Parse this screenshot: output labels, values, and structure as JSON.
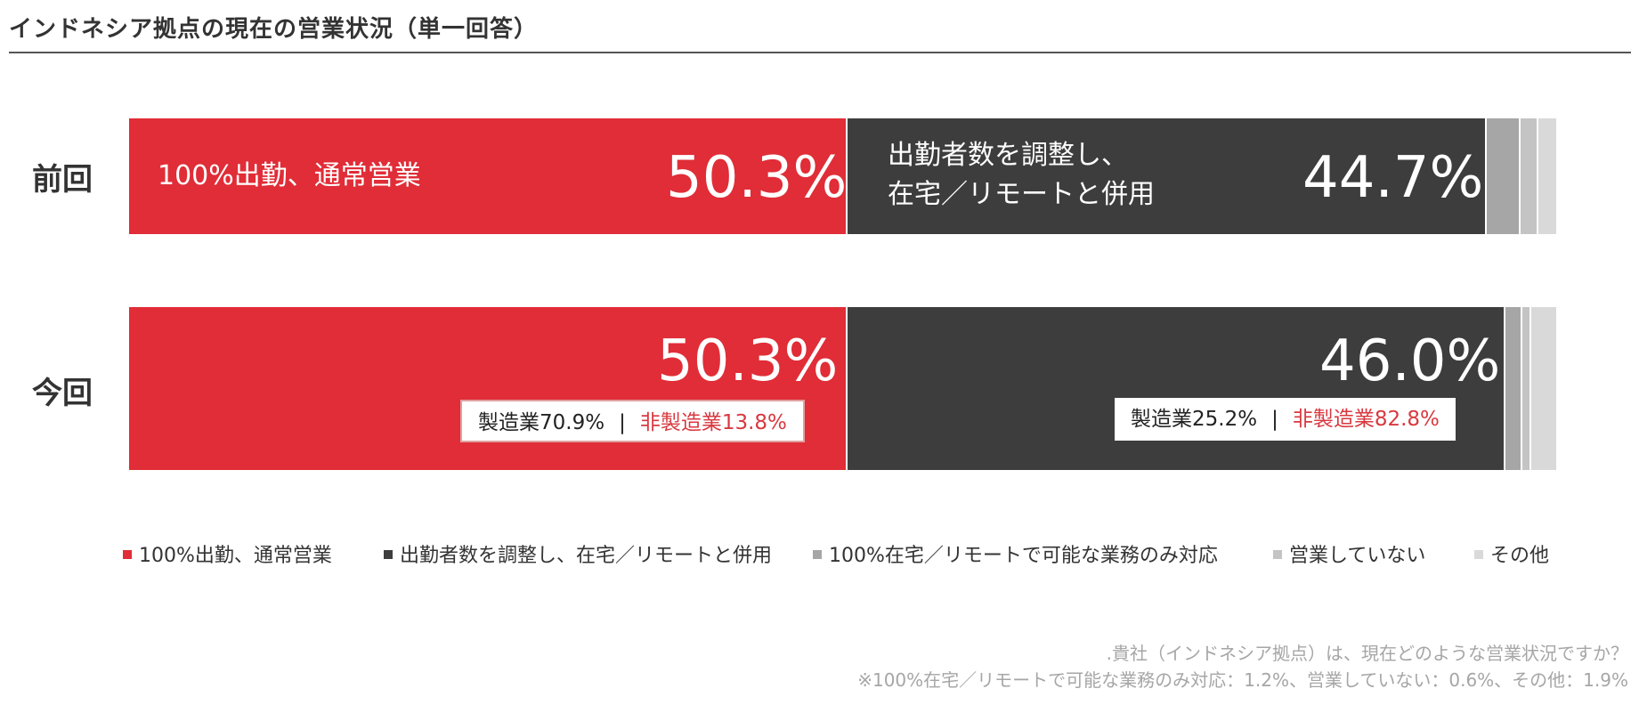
{
  "title": "インドネシア拠点の現在の営業状況（単一回答）",
  "colors": {
    "red": "#e02d37",
    "dark": "#3d3d3d",
    "gray1": "#a6a6a6",
    "gray2": "#c4c4c4",
    "gray3": "#d9d9d9",
    "non_manufacturing_text": "#d9383f"
  },
  "chart_data": {
    "type": "bar",
    "orientation": "horizontal",
    "stacked": true,
    "categories": [
      "前回",
      "今回"
    ],
    "series": [
      {
        "name": "100%出勤、通常営業",
        "values": [
          50.3,
          50.3
        ],
        "color": "#e02d37"
      },
      {
        "name": "出勤者数を調整し、在宅／リモートと併用",
        "values": [
          44.7,
          46.0
        ],
        "color": "#3d3d3d"
      },
      {
        "name": "100%在宅／リモートで可能な業務のみ対応",
        "values": [
          2.4,
          1.2
        ],
        "color": "#a6a6a6"
      },
      {
        "name": "営業していない",
        "values": [
          1.2,
          0.6
        ],
        "color": "#c4c4c4"
      },
      {
        "name": "その他",
        "values": [
          1.4,
          1.9
        ],
        "color": "#d9d9d9"
      }
    ],
    "xlim": [
      0,
      100
    ]
  },
  "rows": [
    {
      "label": "前回",
      "red_label": "100%出勤、通常営業",
      "red_value": "50.3%",
      "dark_label_line1": "出勤者数を調整し、",
      "dark_label_line2": "在宅／リモートと併用",
      "dark_value": "44.7%"
    },
    {
      "label": "今回",
      "red_value": "50.3%",
      "red_breakdown": {
        "manufacturing": "製造業70.9%",
        "separator": "|",
        "non_manufacturing": "非製造業13.8%"
      },
      "dark_value": "46.0%",
      "dark_breakdown": {
        "manufacturing": "製造業25.2%",
        "separator": "|",
        "non_manufacturing": "非製造業82.8%"
      }
    }
  ],
  "legend": [
    "100%出勤、通常営業",
    "出勤者数を調整し、在宅／リモートと併用",
    "100%在宅／リモートで可能な業務のみ対応",
    "営業していない",
    "その他"
  ],
  "footnotes": [
    ".貴社（インドネシア拠点）は、現在どのような営業状況ですか？",
    "※100%在宅／リモートで可能な業務のみ対応：1.2%、営業していない：0.6%、その他：1.9%"
  ]
}
